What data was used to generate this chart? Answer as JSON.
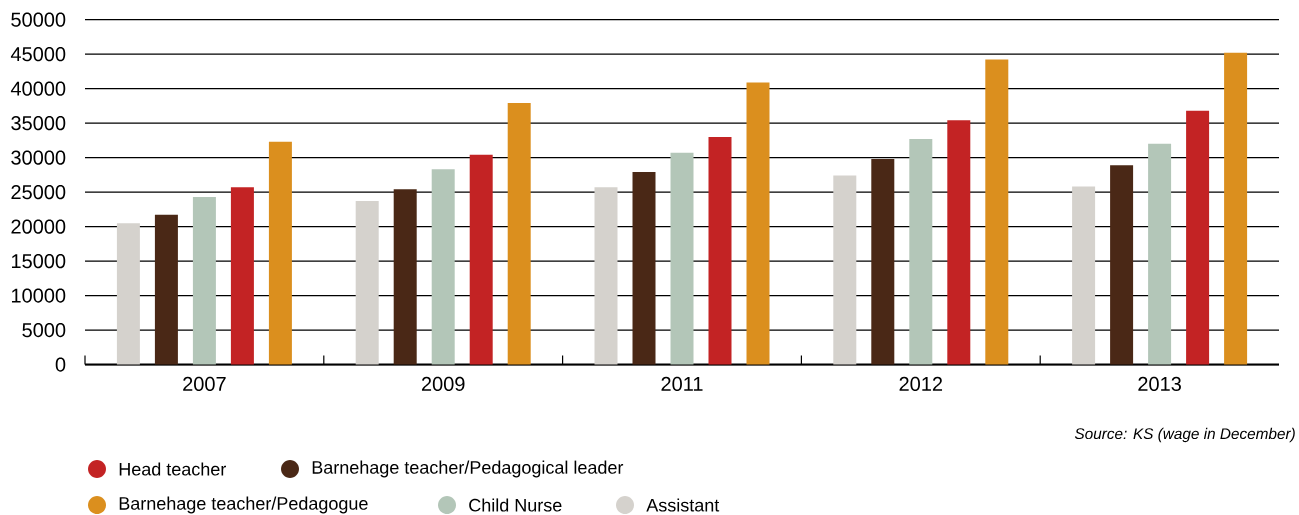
{
  "chart_data": {
    "type": "bar",
    "categories": [
      "2007",
      "2009",
      "2011",
      "2012",
      "2013"
    ],
    "series": [
      {
        "name": "Assistant",
        "color": "#d5d2cd",
        "values": [
          20500,
          23700,
          25700,
          27400,
          25800
        ]
      },
      {
        "name": "Barnehage teacher/Pedagogical leader",
        "color": "#4a2816",
        "values": [
          21700,
          25400,
          27900,
          29800,
          28900
        ]
      },
      {
        "name": "Child Nurse",
        "color": "#b3c6b8",
        "values": [
          24300,
          28300,
          30700,
          32700,
          32000
        ]
      },
      {
        "name": "Head teacher",
        "color": "#c32324",
        "values": [
          25700,
          30400,
          33000,
          35400,
          36800
        ]
      },
      {
        "name": "Barnehage teacher/Pedagogue",
        "color": "#db8f1e",
        "values": [
          32300,
          37900,
          40900,
          44200,
          45200
        ]
      }
    ],
    "ylim": [
      0,
      50000
    ],
    "yticks": [
      0,
      5000,
      10000,
      15000,
      20000,
      25000,
      30000,
      35000,
      40000,
      45000,
      50000
    ],
    "grid": "y",
    "legend": "bottom",
    "annotations": [
      "Source: KS (wage in December)"
    ]
  }
}
